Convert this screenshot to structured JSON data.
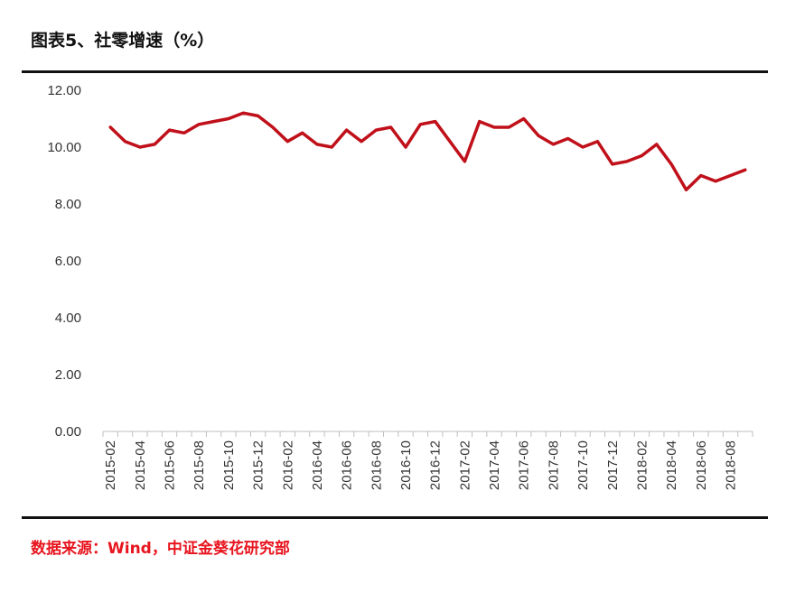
{
  "header": {
    "title": "图表5、社零增速（%）"
  },
  "footer": {
    "source": "数据来源：Wind，中证金葵花研究部"
  },
  "chart_data": {
    "type": "line",
    "ylim": [
      0,
      12
    ],
    "yticks": [
      "0.00",
      "2.00",
      "4.00",
      "6.00",
      "8.00",
      "10.00",
      "12.00"
    ],
    "grid": false,
    "x": [
      "2015-02",
      "2015-03",
      "2015-04",
      "2015-05",
      "2015-06",
      "2015-07",
      "2015-08",
      "2015-09",
      "2015-10",
      "2015-11",
      "2015-12",
      "2016-01",
      "2016-02",
      "2016-03",
      "2016-04",
      "2016-05",
      "2016-06",
      "2016-07",
      "2016-08",
      "2016-09",
      "2016-10",
      "2016-11",
      "2016-12",
      "2017-01",
      "2017-02",
      "2017-03",
      "2017-04",
      "2017-05",
      "2017-06",
      "2017-07",
      "2017-08",
      "2017-09",
      "2017-10",
      "2017-11",
      "2017-12",
      "2018-01",
      "2018-02",
      "2018-03",
      "2018-04",
      "2018-05",
      "2018-06",
      "2018-07",
      "2018-08",
      "2018-09"
    ],
    "xtick_labels": [
      "2015-02",
      "2015-04",
      "2015-06",
      "2015-08",
      "2015-10",
      "2015-12",
      "2016-02",
      "2016-04",
      "2016-06",
      "2016-08",
      "2016-10",
      "2016-12",
      "2017-02",
      "2017-04",
      "2017-06",
      "2017-08",
      "2017-10",
      "2017-12",
      "2018-02",
      "2018-04",
      "2018-06",
      "2018-08"
    ],
    "series": [
      {
        "values": [
          10.7,
          10.2,
          10.0,
          10.1,
          10.6,
          10.5,
          10.8,
          10.9,
          11.0,
          11.2,
          11.1,
          10.7,
          10.2,
          10.5,
          10.1,
          10.0,
          10.6,
          10.2,
          10.6,
          10.7,
          10.0,
          10.8,
          10.9,
          10.2,
          9.5,
          10.9,
          10.7,
          10.7,
          11.0,
          10.4,
          10.1,
          10.3,
          10.0,
          10.2,
          9.4,
          9.5,
          9.7,
          10.1,
          9.4,
          8.5,
          9.0,
          8.8,
          9.0,
          9.2
        ],
        "color": "#c0101a"
      }
    ]
  }
}
